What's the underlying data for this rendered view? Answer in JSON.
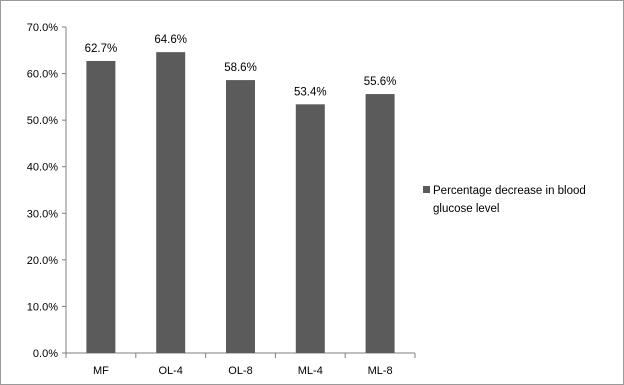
{
  "chart_data": {
    "type": "bar",
    "categories": [
      "MF",
      "OL-4",
      "OL-8",
      "ML-4",
      "ML-8"
    ],
    "series": [
      {
        "name": "Percentage decrease in blood glucose level",
        "values": [
          62.7,
          64.6,
          58.6,
          53.4,
          55.6
        ],
        "color": "#5b5b5b"
      }
    ],
    "data_labels": [
      "62.7%",
      "64.6%",
      "58.6%",
      "53.4%",
      "55.6%"
    ],
    "y_ticks": [
      0,
      10,
      20,
      30,
      40,
      50,
      60,
      70
    ],
    "y_tick_labels": [
      "0.0%",
      "10.0%",
      "20.0%",
      "30.0%",
      "40.0%",
      "50.0%",
      "60.0%",
      "70.0%"
    ],
    "ylim": [
      0,
      70
    ],
    "grid": false,
    "legend_position": "right",
    "legend_lines": [
      "Percentage decrease in blood",
      "glucose level"
    ],
    "title": "",
    "xlabel": "",
    "ylabel": ""
  }
}
